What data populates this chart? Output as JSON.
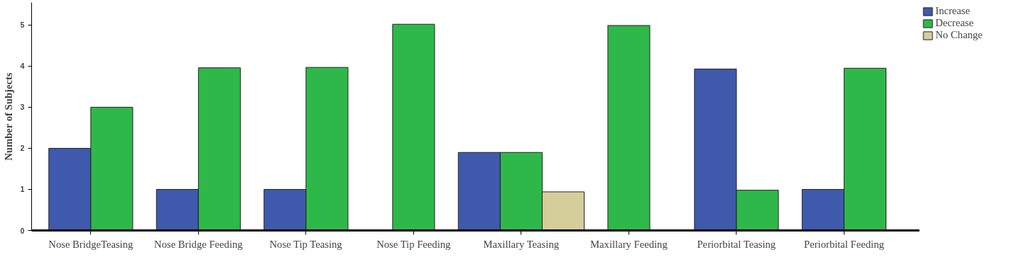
{
  "chart_data": {
    "type": "bar",
    "ylabel": "Number of Subjects",
    "categories": [
      "Nose BridgeTeasing",
      "Nose Bridge Feeding",
      "Nose Tip Teasing",
      "Nose Tip Feeding",
      "Maxillary Teasing",
      "Maxillary Feeding",
      "Periorbital Teasing",
      "Periorbital Feeding"
    ],
    "series": [
      {
        "name": "Increase",
        "color": "#3f59ad",
        "values": [
          2,
          1,
          1,
          null,
          1.9,
          null,
          3.93,
          1
        ]
      },
      {
        "name": "Decrease",
        "color": "#2fb84a",
        "values": [
          3,
          3.96,
          3.97,
          5.02,
          1.9,
          4.99,
          0.98,
          3.95
        ]
      },
      {
        "name": "No Change",
        "color": "#d4cf9a",
        "values": [
          null,
          null,
          null,
          null,
          0.94,
          null,
          null,
          null
        ]
      }
    ],
    "ylim": [
      0,
      5.55
    ],
    "yticks": [
      0,
      1,
      2,
      3,
      4,
      5
    ],
    "grid": false,
    "legend": "top right"
  }
}
